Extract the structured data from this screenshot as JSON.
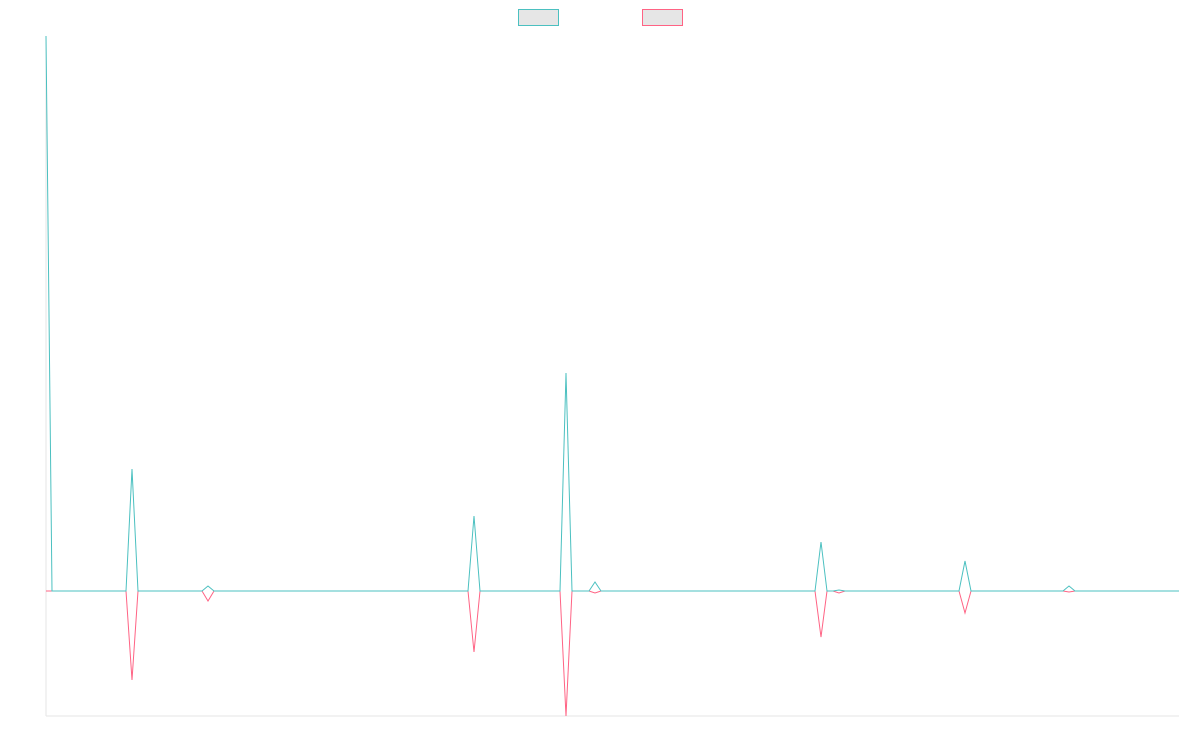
{
  "chart_data": {
    "type": "line",
    "title": "",
    "xlabel": "",
    "ylabel": "",
    "grid": false,
    "legend": "top-center",
    "xlim": [
      0,
      1133
    ],
    "ylim": [
      -100,
      444
    ],
    "baseline": 0,
    "series": [
      {
        "color": "#4bc0c0",
        "legend_fill": "#e6e6e6",
        "points": [
          [
            0,
            444
          ],
          [
            6,
            0
          ],
          [
            80,
            0
          ],
          [
            86,
            97.6
          ],
          [
            92,
            0
          ],
          [
            156,
            0
          ],
          [
            162,
            4
          ],
          [
            168,
            0
          ],
          [
            422,
            0
          ],
          [
            428,
            60
          ],
          [
            434,
            0
          ],
          [
            514,
            0
          ],
          [
            520,
            174.4
          ],
          [
            526,
            0
          ],
          [
            543,
            0
          ],
          [
            549,
            7.2
          ],
          [
            555,
            0
          ],
          [
            769,
            0
          ],
          [
            775,
            39.2
          ],
          [
            781,
            0
          ],
          [
            787,
            0
          ],
          [
            793,
            0.8
          ],
          [
            799,
            0
          ],
          [
            913,
            0
          ],
          [
            919,
            24
          ],
          [
            925,
            0
          ],
          [
            1017,
            0
          ],
          [
            1023,
            4
          ],
          [
            1029,
            0
          ],
          [
            1133,
            0
          ]
        ]
      },
      {
        "color": "#ff6384",
        "legend_fill": "#e6e6e6",
        "points": [
          [
            0,
            0
          ],
          [
            80,
            0
          ],
          [
            86,
            -71.2
          ],
          [
            92,
            0
          ],
          [
            156,
            0
          ],
          [
            162,
            -8
          ],
          [
            168,
            0
          ],
          [
            422,
            0
          ],
          [
            428,
            -48.8
          ],
          [
            434,
            0
          ],
          [
            514,
            0
          ],
          [
            520,
            -100
          ],
          [
            526,
            0
          ],
          [
            543,
            0
          ],
          [
            549,
            -1.6
          ],
          [
            555,
            0
          ],
          [
            769,
            0
          ],
          [
            775,
            -36.8
          ],
          [
            781,
            0
          ],
          [
            787,
            0
          ],
          [
            793,
            -1.6
          ],
          [
            799,
            0
          ],
          [
            913,
            0
          ],
          [
            919,
            -17.6
          ],
          [
            925,
            0
          ],
          [
            1017,
            0
          ],
          [
            1023,
            -0.8
          ],
          [
            1029,
            0
          ],
          [
            1133,
            0
          ]
        ]
      }
    ]
  }
}
